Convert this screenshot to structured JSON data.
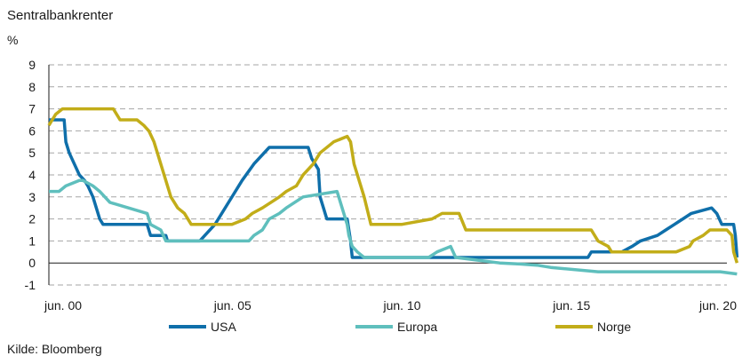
{
  "chart_data": {
    "type": "line",
    "title": "Sentralbankrenter",
    "ylabel": "%",
    "ylim": [
      -1,
      9
    ],
    "yticks": [
      -1,
      0,
      1,
      2,
      3,
      4,
      5,
      6,
      7,
      8,
      9
    ],
    "xlim": [
      2000.0,
      2020.0
    ],
    "xticks": [
      {
        "value": 2000.42,
        "label": "jun. 00"
      },
      {
        "value": 2005.42,
        "label": "jun. 05"
      },
      {
        "value": 2010.42,
        "label": "jun. 10"
      },
      {
        "value": 2015.42,
        "label": "jun. 15"
      },
      {
        "value": 2020.42,
        "label": "jun. 20"
      }
    ],
    "grid": true,
    "legend_position": "bottom",
    "source": "Kilde: Bloomberg",
    "series": [
      {
        "name": "USA",
        "color": "#0f6faa",
        "x": [
          2000.0,
          2000.45,
          2000.5,
          2000.6,
          2000.9,
          2001.05,
          2001.15,
          2001.3,
          2001.5,
          2001.6,
          2001.7,
          2001.85,
          2002.0,
          2002.9,
          2003.0,
          2003.45,
          2003.5,
          2004.45,
          2004.6,
          2004.9,
          2005.3,
          2005.7,
          2006.05,
          2006.5,
          2007.65,
          2007.75,
          2007.85,
          2007.95,
          2008.0,
          2008.1,
          2008.2,
          2008.3,
          2008.8,
          2008.9,
          2008.95,
          2015.9,
          2016.0,
          2016.9,
          2017.2,
          2017.45,
          2017.95,
          2018.2,
          2018.45,
          2018.7,
          2018.95,
          2019.55,
          2019.7,
          2019.85,
          2020.2,
          2020.25,
          2020.3
        ],
        "y": [
          6.5,
          6.5,
          5.5,
          5.0,
          4.0,
          3.75,
          3.5,
          3.0,
          2.0,
          1.75,
          1.75,
          1.75,
          1.75,
          1.75,
          1.25,
          1.25,
          1.0,
          1.0,
          1.25,
          1.75,
          2.75,
          3.75,
          4.5,
          5.25,
          5.25,
          4.75,
          4.5,
          4.25,
          3.0,
          2.5,
          2.0,
          2.0,
          2.0,
          1.0,
          0.25,
          0.25,
          0.5,
          0.5,
          0.75,
          1.0,
          1.25,
          1.5,
          1.75,
          2.0,
          2.25,
          2.5,
          2.25,
          1.75,
          1.75,
          1.25,
          0.25
        ]
      },
      {
        "name": "Europa",
        "color": "#5fbfbd",
        "x": [
          2000.0,
          2000.3,
          2000.5,
          2000.9,
          2001.0,
          2001.3,
          2001.5,
          2001.8,
          2002.9,
          2003.0,
          2003.3,
          2003.45,
          2005.9,
          2006.05,
          2006.3,
          2006.5,
          2006.8,
          2007.0,
          2007.5,
          2008.5,
          2008.8,
          2008.85,
          2008.95,
          2009.1,
          2009.3,
          2011.2,
          2011.45,
          2011.85,
          2012.0,
          2013.3,
          2013.9,
          2014.4,
          2014.8,
          2016.2,
          2019.8,
          2020.3
        ],
        "y": [
          3.25,
          3.25,
          3.5,
          3.75,
          3.75,
          3.5,
          3.25,
          2.75,
          2.25,
          1.75,
          1.5,
          1.0,
          1.0,
          1.25,
          1.5,
          2.0,
          2.25,
          2.5,
          3.0,
          3.25,
          1.75,
          1.25,
          0.75,
          0.5,
          0.25,
          0.25,
          0.5,
          0.75,
          0.25,
          0.0,
          -0.05,
          -0.1,
          -0.2,
          -0.4,
          -0.4,
          -0.5
        ]
      },
      {
        "name": "Norge",
        "color": "#c2ad19",
        "x": [
          2000.0,
          2000.1,
          2000.2,
          2000.4,
          2000.6,
          2001.0,
          2001.9,
          2002.1,
          2002.6,
          2002.8,
          2002.95,
          2003.1,
          2003.2,
          2003.4,
          2003.6,
          2003.8,
          2004.0,
          2004.2,
          2005.2,
          2005.4,
          2005.8,
          2006.0,
          2006.3,
          2006.8,
          2007.0,
          2007.3,
          2007.5,
          2007.8,
          2008.0,
          2008.4,
          2008.8,
          2008.9,
          2009.0,
          2009.3,
          2009.5,
          2010.4,
          2011.3,
          2011.6,
          2012.1,
          2012.3,
          2016.0,
          2016.2,
          2016.5,
          2016.6,
          2018.5,
          2018.9,
          2019.0,
          2019.3,
          2019.5,
          2019.75,
          2020.0,
          2020.15,
          2020.2,
          2020.3
        ],
        "y": [
          6.25,
          6.5,
          6.75,
          7.0,
          7.0,
          7.0,
          7.0,
          6.5,
          6.5,
          6.25,
          6.0,
          5.5,
          5.0,
          4.0,
          3.0,
          2.5,
          2.25,
          1.75,
          1.75,
          1.75,
          2.0,
          2.25,
          2.5,
          3.0,
          3.25,
          3.5,
          4.0,
          4.5,
          5.0,
          5.5,
          5.75,
          5.5,
          4.5,
          3.0,
          1.75,
          1.75,
          2.0,
          2.25,
          2.25,
          1.5,
          1.5,
          1.0,
          0.75,
          0.5,
          0.5,
          0.75,
          1.0,
          1.25,
          1.5,
          1.5,
          1.5,
          1.25,
          0.5,
          0.0
        ]
      }
    ]
  }
}
